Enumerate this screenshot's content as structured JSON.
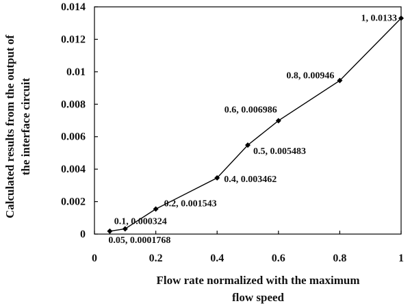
{
  "chart_data": {
    "type": "line",
    "x_label_lines": [
      "Flow rate normalized with the maximum",
      "flow speed"
    ],
    "y_label_lines": [
      "Calculated results from the output of",
      "the interface circuit"
    ],
    "xlim": [
      0,
      1
    ],
    "ylim": [
      0,
      0.014
    ],
    "x_ticks": [
      "0",
      "0.2",
      "0.4",
      "0.6",
      "0.8",
      "1"
    ],
    "y_ticks": [
      "0",
      "0.002",
      "0.004",
      "0.006",
      "0.008",
      "0.01",
      "0.012",
      "0.014"
    ],
    "grid": false,
    "series": [
      {
        "x": [
          0.05,
          0.1,
          0.2,
          0.4,
          0.5,
          0.6,
          0.8,
          1
        ],
        "y": [
          0.0001768,
          0.000324,
          0.001543,
          0.003462,
          0.005483,
          0.006986,
          0.00946,
          0.0133
        ]
      }
    ],
    "data_labels": [
      "0.05, 0.0001768",
      "0.1, 0.000324",
      "0.2, 0.001543",
      "0.4, 0.003462",
      "0.5, 0.005483",
      "0.6, 0.006986",
      "0.8, 0.00946",
      "1, 0.0133"
    ]
  }
}
